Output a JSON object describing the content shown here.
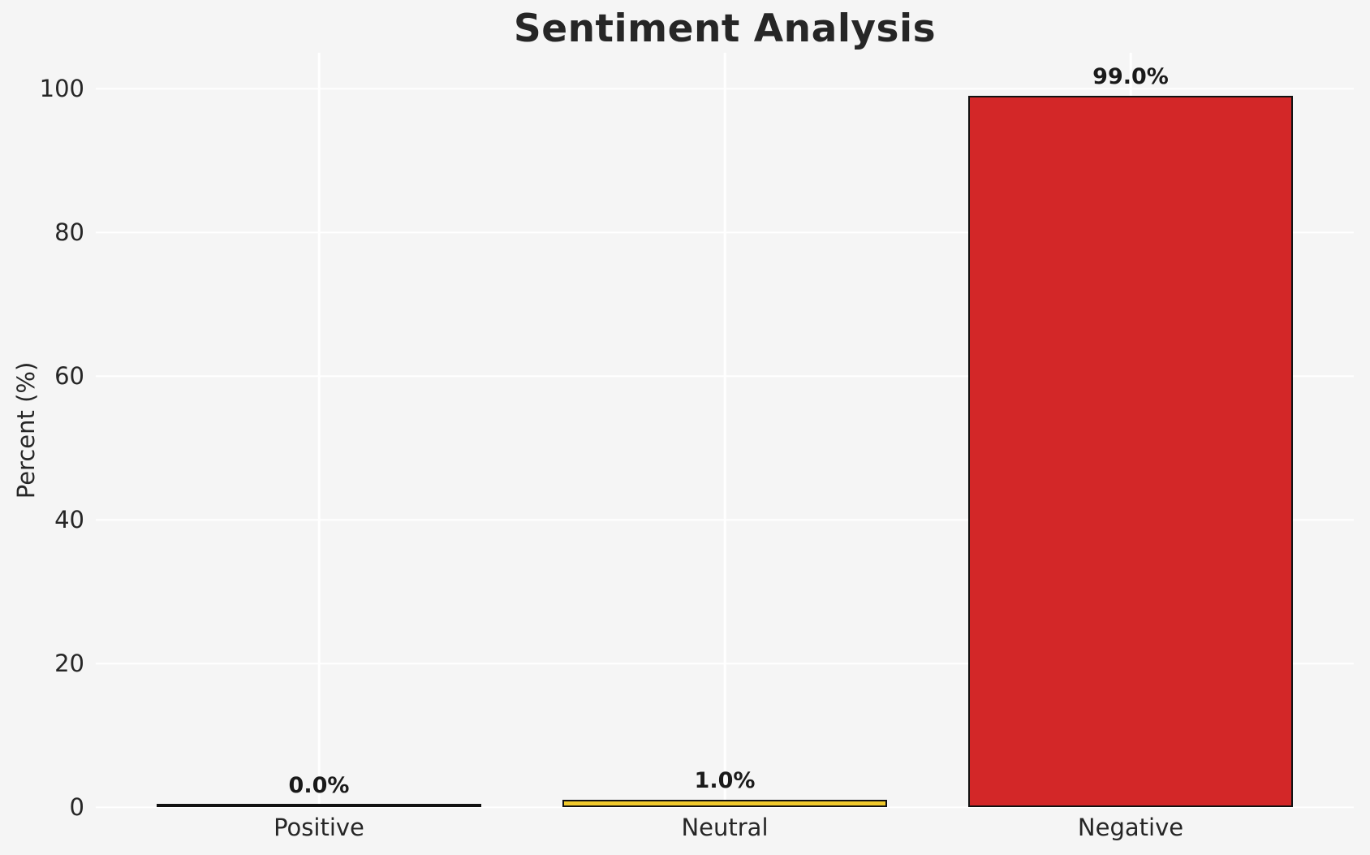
{
  "chart_data": {
    "type": "bar",
    "title": "Sentiment Analysis",
    "xlabel": "",
    "ylabel": "Percent (%)",
    "categories": [
      "Positive",
      "Neutral",
      "Negative"
    ],
    "values": [
      0.0,
      1.0,
      99.0
    ],
    "value_labels": [
      "0.0%",
      "1.0%",
      "99.0%"
    ],
    "bar_fill_colors": [
      "transparent",
      "#F0C92C",
      "#D32728"
    ],
    "bar_edge_color": "#111111",
    "yticks": [
      0,
      20,
      40,
      60,
      80,
      100
    ],
    "ytick_labels": [
      "0",
      "20",
      "40",
      "60",
      "80",
      "100"
    ],
    "ylim": [
      0,
      105
    ],
    "grid": true,
    "gridline_color": "#ffffff",
    "background_color": "#f5f5f5",
    "text_color": "#262626",
    "legend": null
  }
}
